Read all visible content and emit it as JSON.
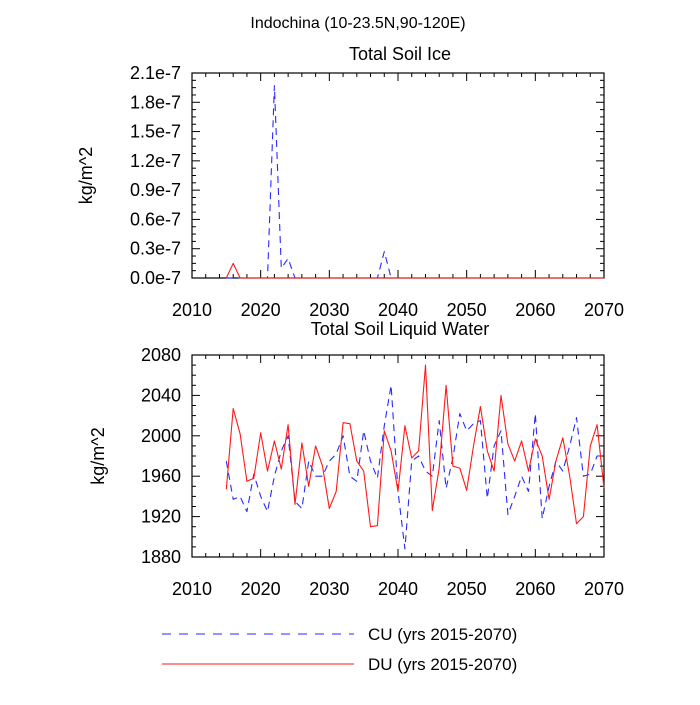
{
  "figure_title": "Indochina (10-23.5N,90-120E)",
  "colors": {
    "cu": "#2a2aff",
    "du": "#ff1a1a",
    "axis": "#000000"
  },
  "legend": [
    {
      "key": "cu",
      "label": "CU (yrs 2015-2070)"
    },
    {
      "key": "du",
      "label": "DU (yrs 2015-2070)"
    }
  ],
  "chart_data": [
    {
      "type": "line",
      "title": "Total Soil Ice",
      "xlabel": "",
      "ylabel": "kg/m^2",
      "xlim": [
        2010,
        2070
      ],
      "ylim": [
        0,
        2.1e-07
      ],
      "x_ticks": [
        2010,
        2020,
        2030,
        2040,
        2050,
        2060,
        2070
      ],
      "x_tick_labels": [
        "2010",
        "2020",
        "2030",
        "2040",
        "2050",
        "2060",
        "2070"
      ],
      "y_ticks": [
        0,
        3e-08,
        6e-08,
        9e-08,
        1.2e-07,
        1.5e-07,
        1.8e-07,
        2.1e-07
      ],
      "y_tick_labels": [
        "0.0e-7",
        "0.3e-7",
        "0.6e-7",
        "0.9e-7",
        "1.2e-7",
        "1.5e-7",
        "1.8e-7",
        "2.1e-7"
      ],
      "x": [
        2015,
        2016,
        2017,
        2018,
        2019,
        2020,
        2021,
        2022,
        2023,
        2024,
        2025,
        2026,
        2027,
        2028,
        2029,
        2030,
        2031,
        2032,
        2033,
        2034,
        2035,
        2036,
        2037,
        2038,
        2039,
        2040,
        2041,
        2042,
        2043,
        2044,
        2045,
        2046,
        2047,
        2048,
        2049,
        2050,
        2051,
        2052,
        2053,
        2054,
        2055,
        2056,
        2057,
        2058,
        2059,
        2060,
        2061,
        2062,
        2063,
        2064,
        2065,
        2066,
        2067,
        2068,
        2069,
        2070
      ],
      "series": [
        {
          "name": "CU",
          "style": "dashed",
          "values": [
            0,
            0,
            0,
            0,
            0,
            0,
            0,
            1.97e-07,
            1e-08,
            2e-08,
            0,
            0,
            0,
            0,
            0,
            0,
            0,
            0,
            0,
            0,
            0,
            0,
            0,
            2.7e-08,
            0,
            0,
            0,
            0,
            0,
            0,
            0,
            0,
            0,
            0,
            0,
            0,
            0,
            0,
            0,
            0,
            0,
            0,
            0,
            0,
            0,
            0,
            0,
            0,
            0,
            0,
            0,
            0,
            0,
            0,
            0,
            0
          ]
        },
        {
          "name": "DU",
          "style": "solid",
          "values": [
            0,
            1.5e-08,
            0,
            0,
            0,
            0,
            0,
            0,
            0,
            0,
            0,
            0,
            0,
            0,
            0,
            0,
            0,
            0,
            0,
            0,
            0,
            0,
            0,
            0,
            0,
            0,
            0,
            0,
            0,
            0,
            0,
            0,
            0,
            0,
            0,
            0,
            0,
            0,
            0,
            0,
            0,
            0,
            0,
            0,
            0,
            0,
            0,
            0,
            0,
            0,
            0,
            0,
            0,
            0,
            0,
            0
          ]
        }
      ]
    },
    {
      "type": "line",
      "title": "Total Soil Liquid Water",
      "xlabel": "",
      "ylabel": "kg/m^2",
      "xlim": [
        2010,
        2070
      ],
      "ylim": [
        1880,
        2080
      ],
      "x_ticks": [
        2010,
        2020,
        2030,
        2040,
        2050,
        2060,
        2070
      ],
      "x_tick_labels": [
        "2010",
        "2020",
        "2030",
        "2040",
        "2050",
        "2060",
        "2070"
      ],
      "y_ticks": [
        1880,
        1920,
        1960,
        2000,
        2040,
        2080
      ],
      "y_tick_labels": [
        "1880",
        "1920",
        "1960",
        "2000",
        "2040",
        "2080"
      ],
      "x": [
        2015,
        2016,
        2017,
        2018,
        2019,
        2020,
        2021,
        2022,
        2023,
        2024,
        2025,
        2026,
        2027,
        2028,
        2029,
        2030,
        2031,
        2032,
        2033,
        2034,
        2035,
        2036,
        2037,
        2038,
        2039,
        2040,
        2041,
        2042,
        2043,
        2044,
        2045,
        2046,
        2047,
        2048,
        2049,
        2050,
        2051,
        2052,
        2053,
        2054,
        2055,
        2056,
        2057,
        2058,
        2059,
        2060,
        2061,
        2062,
        2063,
        2064,
        2065,
        2066,
        2067,
        2068,
        2069,
        2070
      ],
      "series": [
        {
          "name": "CU",
          "style": "dashed",
          "values": [
            1975,
            1937,
            1940,
            1925,
            1962,
            1940,
            1925,
            1960,
            1985,
            2000,
            1935,
            1928,
            1975,
            1960,
            1960,
            1975,
            1982,
            2000,
            1960,
            1955,
            2005,
            1975,
            1958,
            2010,
            2050,
            1945,
            1888,
            1975,
            1980,
            1965,
            1960,
            2015,
            1948,
            1978,
            2022,
            2005,
            2012,
            2015,
            1938,
            1990,
            2005,
            1922,
            1940,
            1960,
            1945,
            2022,
            1918,
            1950,
            1975,
            1965,
            1990,
            2018,
            1960,
            1962,
            1980,
            1980
          ]
        },
        {
          "name": "DU",
          "style": "solid",
          "values": [
            1947,
            2027,
            2002,
            1955,
            1958,
            2003,
            1965,
            1995,
            1967,
            2011,
            1932,
            1993,
            1950,
            1990,
            1970,
            1928,
            1945,
            2013,
            2012,
            1975,
            1965,
            1910,
            1911,
            2005,
            1985,
            1945,
            2010,
            1978,
            1985,
            2070,
            1926,
            1968,
            2050,
            1970,
            1968,
            1946,
            1990,
            2029,
            1985,
            1965,
            2040,
            1992,
            1975,
            1995,
            1965,
            1997,
            1980,
            1937,
            1975,
            1998,
            1960,
            1913,
            1920,
            1990,
            2011,
            1948
          ]
        }
      ]
    }
  ]
}
